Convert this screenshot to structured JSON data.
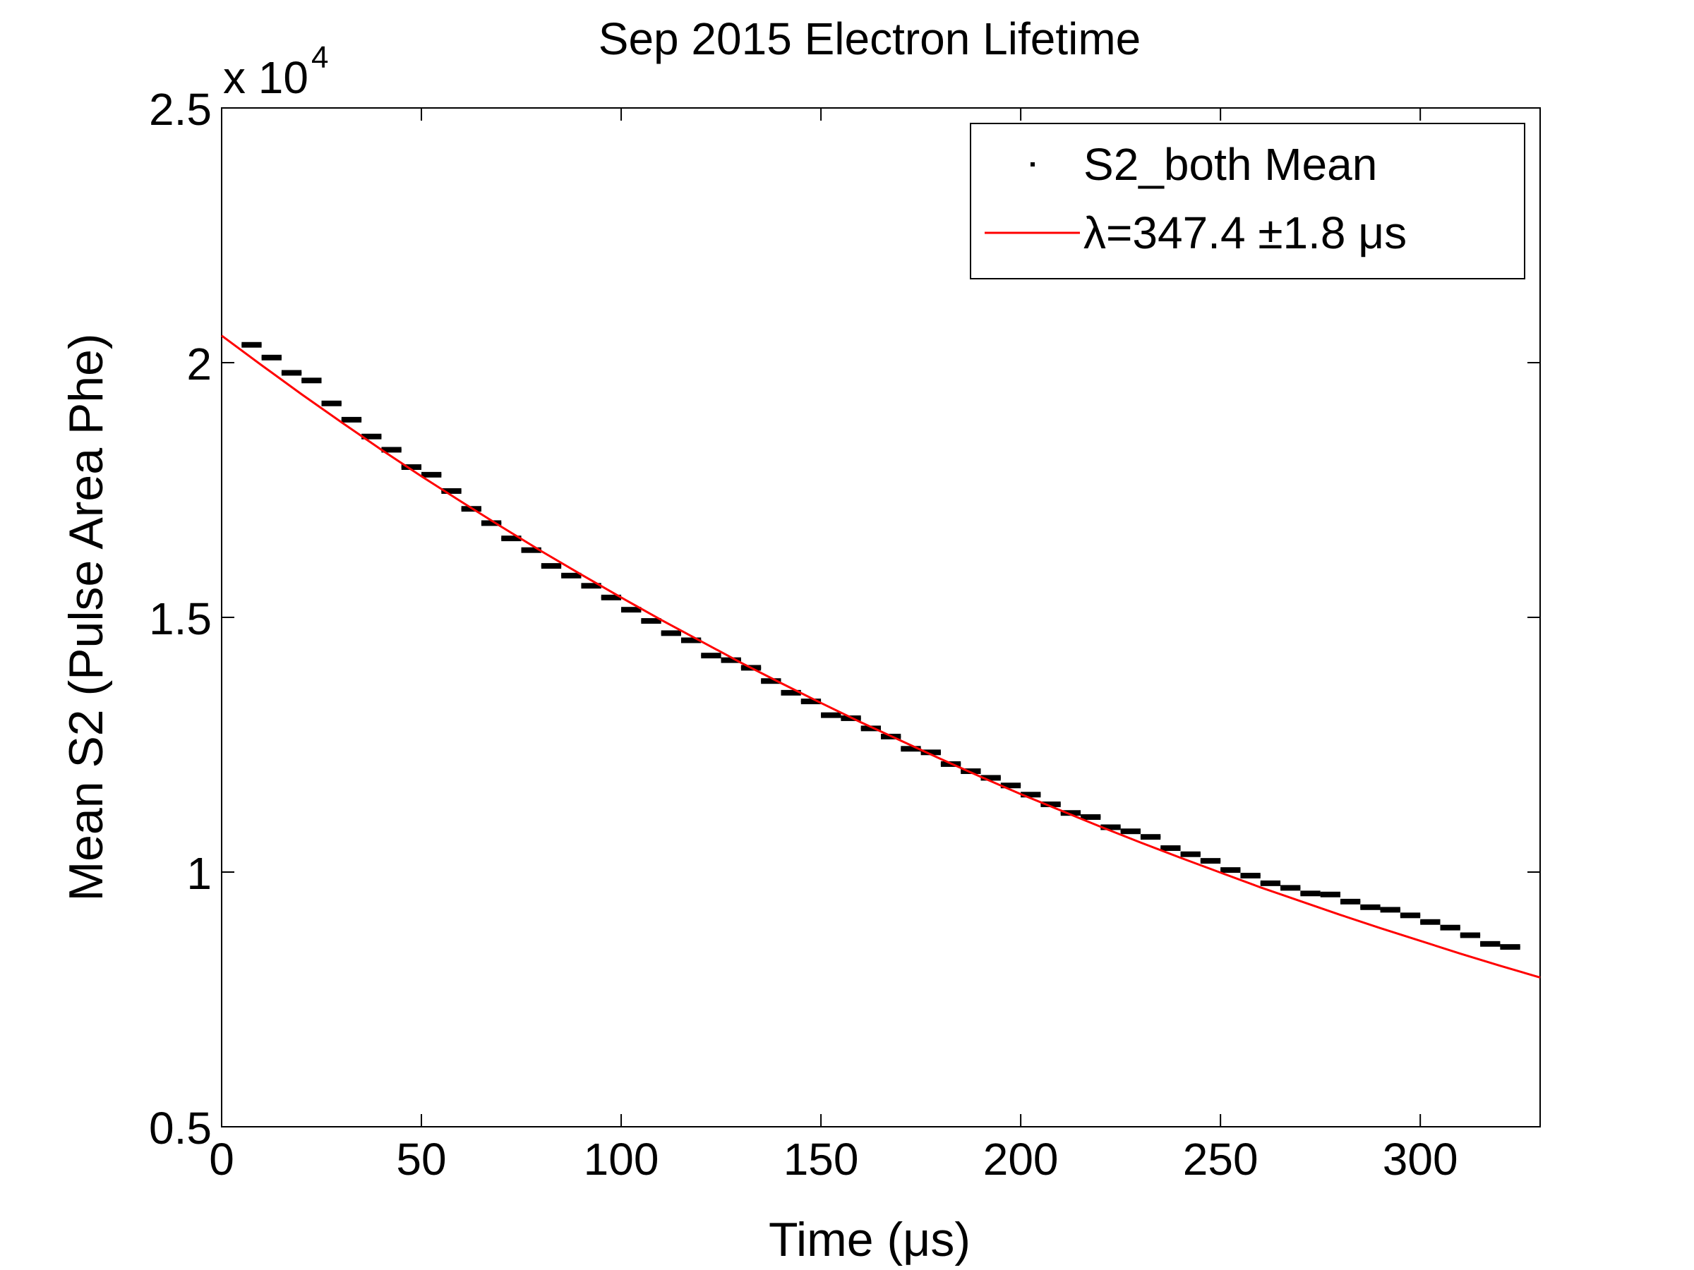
{
  "chart_data": {
    "type": "scatter",
    "title": "Sep 2015 Electron Lifetime",
    "xlabel": "Time (μs)",
    "ylabel": "Mean S2 (Pulse Area Phe)",
    "y_exponent_base": "x 10",
    "y_exponent_power": "4",
    "xlim": [
      0,
      330
    ],
    "ylim": [
      5000,
      25000
    ],
    "x_ticks": [
      0,
      50,
      100,
      150,
      200,
      250,
      300
    ],
    "x_tick_labels": [
      "0",
      "50",
      "100",
      "150",
      "200",
      "250",
      "300"
    ],
    "y_ticks": [
      5000,
      10000,
      15000,
      20000,
      25000
    ],
    "y_tick_labels": [
      "0.5",
      "1",
      "1.5",
      "2",
      "2.5"
    ],
    "grid": false,
    "legend_position": "top-right",
    "legend": {
      "data_label": "S2_both Mean",
      "fit_label": "λ=347.4 ±1.8 μs"
    },
    "colors": {
      "data": "#000000",
      "fit": "#ff0000"
    },
    "series": [
      {
        "name": "S2_both Mean",
        "kind": "points_with_errorbars",
        "x_halfwidth": 2.5,
        "y_error": 55,
        "x": [
          7.5,
          12.5,
          17.5,
          22.5,
          27.5,
          32.5,
          37.5,
          42.5,
          47.5,
          52.5,
          57.5,
          62.5,
          67.5,
          72.5,
          77.5,
          82.5,
          87.5,
          92.5,
          97.5,
          102.5,
          107.5,
          112.5,
          117.5,
          122.5,
          127.5,
          132.5,
          137.5,
          142.5,
          147.5,
          152.5,
          157.5,
          162.5,
          167.5,
          172.5,
          177.5,
          182.5,
          187.5,
          192.5,
          197.5,
          202.5,
          207.5,
          212.5,
          217.5,
          222.5,
          227.5,
          232.5,
          237.5,
          242.5,
          247.5,
          252.5,
          257.5,
          262.5,
          267.5,
          272.5,
          277.5,
          282.5,
          287.5,
          292.5,
          297.5,
          302.5,
          307.5,
          312.5,
          317.5,
          322.5
        ],
        "y": [
          20350,
          20100,
          19800,
          19650,
          19200,
          18880,
          18550,
          18290,
          17950,
          17800,
          17480,
          17130,
          16850,
          16550,
          16320,
          16010,
          15820,
          15620,
          15390,
          15150,
          14930,
          14690,
          14550,
          14250,
          14160,
          14010,
          13750,
          13520,
          13350,
          13080,
          13020,
          12820,
          12660,
          12420,
          12350,
          12120,
          11980,
          11850,
          11700,
          11520,
          11330,
          11160,
          11080,
          10880,
          10800,
          10690,
          10470,
          10350,
          10220,
          10040,
          9930,
          9780,
          9690,
          9580,
          9560,
          9420,
          9310,
          9260,
          9150,
          9020,
          8910,
          8760,
          8590,
          8530
        ]
      },
      {
        "name": "λ=347.4 ±1.8 μs",
        "kind": "fit_line",
        "model": "exponential",
        "x": [
          0,
          10,
          20,
          30,
          40,
          50,
          60,
          70,
          80,
          90,
          100,
          110,
          120,
          130,
          140,
          150,
          160,
          170,
          180,
          190,
          200,
          210,
          220,
          230,
          240,
          250,
          260,
          270,
          280,
          290,
          300,
          310,
          320,
          330
        ],
        "y": [
          20530,
          19950,
          19380,
          18830,
          18290,
          17770,
          17270,
          16780,
          16300,
          15840,
          15390,
          14950,
          14530,
          14110,
          13710,
          13320,
          12940,
          12580,
          12220,
          11870,
          11530,
          11210,
          10890,
          10580,
          10280,
          9990,
          9700,
          9430,
          9160,
          8900,
          8650,
          8400,
          8160,
          7930
        ]
      }
    ]
  }
}
